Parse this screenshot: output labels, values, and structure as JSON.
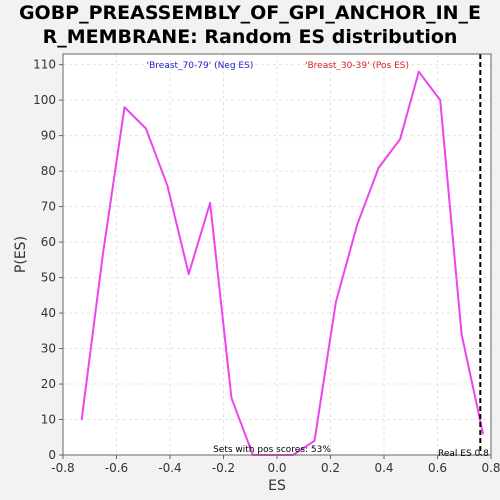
{
  "title": {
    "line1": "GOBP_PREASSEMBLY_OF_GPI_ANCHOR_IN_E",
    "line2": "R_MEMBRANE: Random ES distribution"
  },
  "colors": {
    "line": "#ee44ee",
    "neg_label": "#2222cc",
    "pos_label": "#dd2222",
    "grid": "#e4e4e4",
    "plot_bg": "#ffffff",
    "page_bg": "#f2f2f2"
  },
  "chart_data": {
    "type": "line",
    "title": "GOBP_PREASSEMBLY_OF_GPI_ANCHOR_IN_ER_MEMBRANE: Random ES distribution",
    "xlabel": "ES",
    "ylabel": "P(ES)",
    "xlim": [
      -0.8,
      0.8
    ],
    "ylim": [
      0,
      113
    ],
    "xticks": [
      -0.8,
      -0.6,
      -0.4,
      -0.2,
      0.0,
      0.2,
      0.4,
      0.6,
      0.8
    ],
    "xtick_labels": [
      "-0.8",
      "-0.6",
      "-0.4",
      "-0.2",
      "0.0",
      "0.2",
      "0.4",
      "0.6",
      "0.8"
    ],
    "yticks": [
      0,
      10,
      20,
      30,
      40,
      50,
      60,
      70,
      80,
      90,
      100,
      110
    ],
    "ytick_labels": [
      "0",
      "10",
      "20",
      "30",
      "40",
      "50",
      "60",
      "70",
      "80",
      "90",
      "100",
      "110"
    ],
    "grid": true,
    "series": [
      {
        "x": [
          -0.73,
          -0.65,
          -0.57,
          -0.49,
          -0.41,
          -0.33,
          -0.25,
          -0.17,
          -0.09,
          -0.01,
          0.06,
          0.14,
          0.22,
          0.3,
          0.38,
          0.46,
          0.53,
          0.61,
          0.69,
          0.77
        ],
        "y": [
          10,
          57,
          98,
          92,
          76,
          51,
          71,
          16,
          0,
          0,
          0,
          4,
          43,
          65,
          81,
          89,
          108,
          100,
          34,
          6
        ]
      }
    ],
    "real_es": 0.76,
    "legend": {
      "neg_label": "'Breast_70-79' (Neg ES)",
      "pos_label": "'Breast_30-39' (Pos ES)",
      "placement": "top"
    },
    "annotations": {
      "sets_text": "Sets with pos scores: 53%",
      "real_es_text": "Real ES 0.8"
    }
  }
}
